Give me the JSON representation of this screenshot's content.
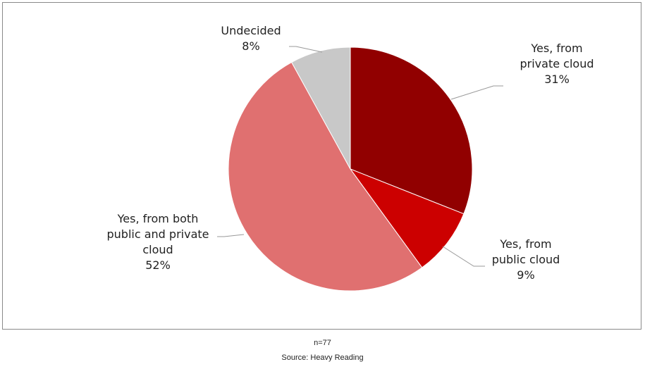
{
  "chart_data": {
    "type": "pie",
    "title": "",
    "start_angle": "12 o'clock, clockwise",
    "slices": [
      {
        "label": "Yes, from private cloud",
        "lines": [
          "Yes, from",
          "private cloud",
          "31%"
        ],
        "value": 31,
        "color": "#910000"
      },
      {
        "label": "Yes, from public cloud",
        "lines": [
          "Yes, from",
          "public cloud",
          "9%"
        ],
        "value": 9,
        "color": "#CC0000"
      },
      {
        "label": "Yes, from both public and private cloud",
        "lines": [
          "Yes, from both",
          "public and private",
          "cloud",
          "52%"
        ],
        "value": 52,
        "color": "#E07070"
      },
      {
        "label": "Undecided",
        "lines": [
          "Undecided",
          "8%"
        ],
        "value": 8,
        "color": "#C8C8C8"
      }
    ]
  },
  "footer": {
    "n": "n=77",
    "source": "Source: Heavy Reading"
  }
}
